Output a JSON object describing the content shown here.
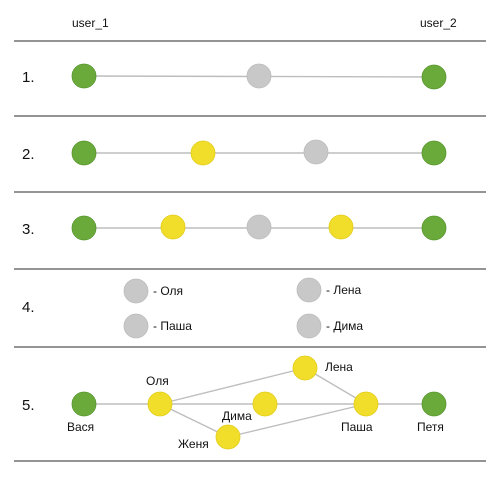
{
  "header": {
    "left": "user_1",
    "right": "user_2"
  },
  "colors": {
    "green": "#6aaa3a",
    "yellow": "#f0de2a",
    "gray": "#c8c8c8"
  },
  "rows": [
    {
      "number": "1.",
      "nodes": [
        "green",
        "gray",
        "green"
      ]
    },
    {
      "number": "2.",
      "nodes": [
        "green",
        "yellow",
        "gray",
        "green"
      ]
    },
    {
      "number": "3.",
      "nodes": [
        "green",
        "yellow",
        "gray",
        "yellow",
        "green"
      ]
    },
    {
      "number": "4.",
      "legend": [
        "- Оля",
        "- Лена",
        "- Паша",
        "- Дима"
      ]
    },
    {
      "number": "5.",
      "graph_labels": {
        "vasya": "Вася",
        "olya": "Оля",
        "lena": "Лена",
        "dima": "Дима",
        "zhenya": "Женя",
        "pasha": "Паша",
        "petya": "Петя"
      }
    }
  ]
}
